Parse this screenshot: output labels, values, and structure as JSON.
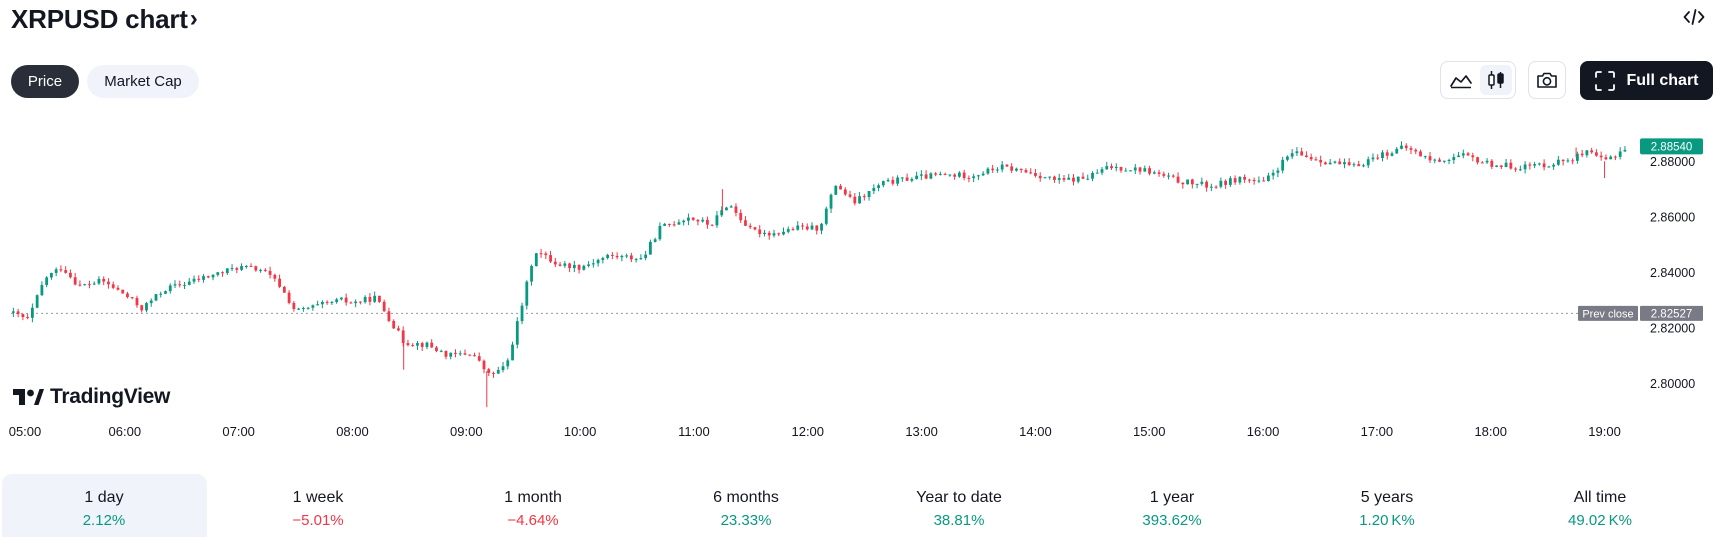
{
  "header": {
    "title": "XRPUSD chart",
    "title_chevron": "›",
    "embed_icon": "code-embed-icon"
  },
  "tabs": [
    {
      "label": "Price",
      "active": true
    },
    {
      "label": "Market Cap",
      "active": false
    }
  ],
  "toolbar": {
    "line_icon": "area-line-chart-icon",
    "candle_icon": "candlestick-chart-icon",
    "camera_icon": "camera-icon",
    "fullscreen_icon": "fullscreen-icon",
    "full_chart_label": "Full chart"
  },
  "branding": {
    "logo_text": "TradingView"
  },
  "colors": {
    "up": "#089981",
    "down": "#f23645",
    "last_price_bg": "#089981",
    "prev_close_bg": "#787b86"
  },
  "chart_data": {
    "type": "candlestick",
    "symbol": "XRPUSD",
    "x_ticks": [
      "05:00",
      "06:00",
      "07:00",
      "08:00",
      "09:00",
      "10:00",
      "11:00",
      "12:00",
      "13:00",
      "14:00",
      "15:00",
      "16:00",
      "17:00",
      "18:00",
      "19:00"
    ],
    "y_ticks": [
      2.8,
      2.82,
      2.84,
      2.86,
      2.88
    ],
    "y_tick_labels": [
      "2.80000",
      "2.82000",
      "2.84000",
      "2.86000",
      "2.88000"
    ],
    "ylim": [
      2.7905,
      2.8985
    ],
    "xlim": [
      5.0,
      19.25
    ],
    "last_price": 2.8854,
    "last_price_label": "2.88540",
    "prev_close": 2.82527,
    "prev_close_label": "2.82527",
    "prev_close_text": "Prev close",
    "price_path": [
      [
        5.0,
        2.8255
      ],
      [
        5.15,
        2.823
      ],
      [
        5.3,
        2.838
      ],
      [
        5.45,
        2.842
      ],
      [
        5.6,
        2.835
      ],
      [
        5.8,
        2.837
      ],
      [
        6.0,
        2.832
      ],
      [
        6.15,
        2.827
      ],
      [
        6.35,
        2.834
      ],
      [
        6.6,
        2.837
      ],
      [
        6.85,
        2.84
      ],
      [
        7.0,
        2.842
      ],
      [
        7.2,
        2.841
      ],
      [
        7.35,
        2.836
      ],
      [
        7.5,
        2.826
      ],
      [
        7.7,
        2.828
      ],
      [
        7.9,
        2.83
      ],
      [
        8.0,
        2.829
      ],
      [
        8.2,
        2.831
      ],
      [
        8.3,
        2.825
      ],
      [
        8.45,
        2.815
      ],
      [
        8.65,
        2.814
      ],
      [
        8.85,
        2.81
      ],
      [
        9.05,
        2.811
      ],
      [
        9.2,
        2.803
      ],
      [
        9.35,
        2.806
      ],
      [
        9.5,
        2.83
      ],
      [
        9.6,
        2.848
      ],
      [
        9.8,
        2.843
      ],
      [
        10.0,
        2.842
      ],
      [
        10.25,
        2.846
      ],
      [
        10.55,
        2.845
      ],
      [
        10.7,
        2.856
      ],
      [
        10.95,
        2.86
      ],
      [
        11.15,
        2.857
      ],
      [
        11.3,
        2.865
      ],
      [
        11.5,
        2.855
      ],
      [
        11.7,
        2.854
      ],
      [
        11.9,
        2.856
      ],
      [
        12.1,
        2.856
      ],
      [
        12.25,
        2.872
      ],
      [
        12.4,
        2.865
      ],
      [
        12.65,
        2.872
      ],
      [
        12.9,
        2.874
      ],
      [
        13.15,
        2.875
      ],
      [
        13.45,
        2.875
      ],
      [
        13.7,
        2.878
      ],
      [
        13.95,
        2.876
      ],
      [
        14.2,
        2.873
      ],
      [
        14.45,
        2.874
      ],
      [
        14.65,
        2.878
      ],
      [
        14.95,
        2.877
      ],
      [
        15.25,
        2.873
      ],
      [
        15.55,
        2.871
      ],
      [
        15.8,
        2.874
      ],
      [
        16.0,
        2.872
      ],
      [
        16.25,
        2.883
      ],
      [
        16.55,
        2.88
      ],
      [
        16.8,
        2.878
      ],
      [
        17.0,
        2.882
      ],
      [
        17.25,
        2.885
      ],
      [
        17.5,
        2.88
      ],
      [
        17.75,
        2.882
      ],
      [
        18.0,
        2.879
      ],
      [
        18.25,
        2.878
      ],
      [
        18.5,
        2.879
      ],
      [
        18.7,
        2.881
      ],
      [
        18.85,
        2.883
      ],
      [
        19.0,
        2.88
      ],
      [
        19.2,
        2.8854
      ]
    ]
  },
  "periods": [
    {
      "label": "1 day",
      "value": "2.12%",
      "positive": true,
      "active": true
    },
    {
      "label": "1 week",
      "value": "−5.01%",
      "positive": false,
      "active": false
    },
    {
      "label": "1 month",
      "value": "−4.64%",
      "positive": false,
      "active": false
    },
    {
      "label": "6 months",
      "value": "23.33%",
      "positive": true,
      "active": false
    },
    {
      "label": "Year to date",
      "value": "38.81%",
      "positive": true,
      "active": false
    },
    {
      "label": "1 year",
      "value": "393.62%",
      "positive": true,
      "active": false
    },
    {
      "label": "5 years",
      "value": "1.20 K%",
      "positive": true,
      "active": false
    },
    {
      "label": "All time",
      "value": "49.02 K%",
      "positive": true,
      "active": false
    }
  ]
}
